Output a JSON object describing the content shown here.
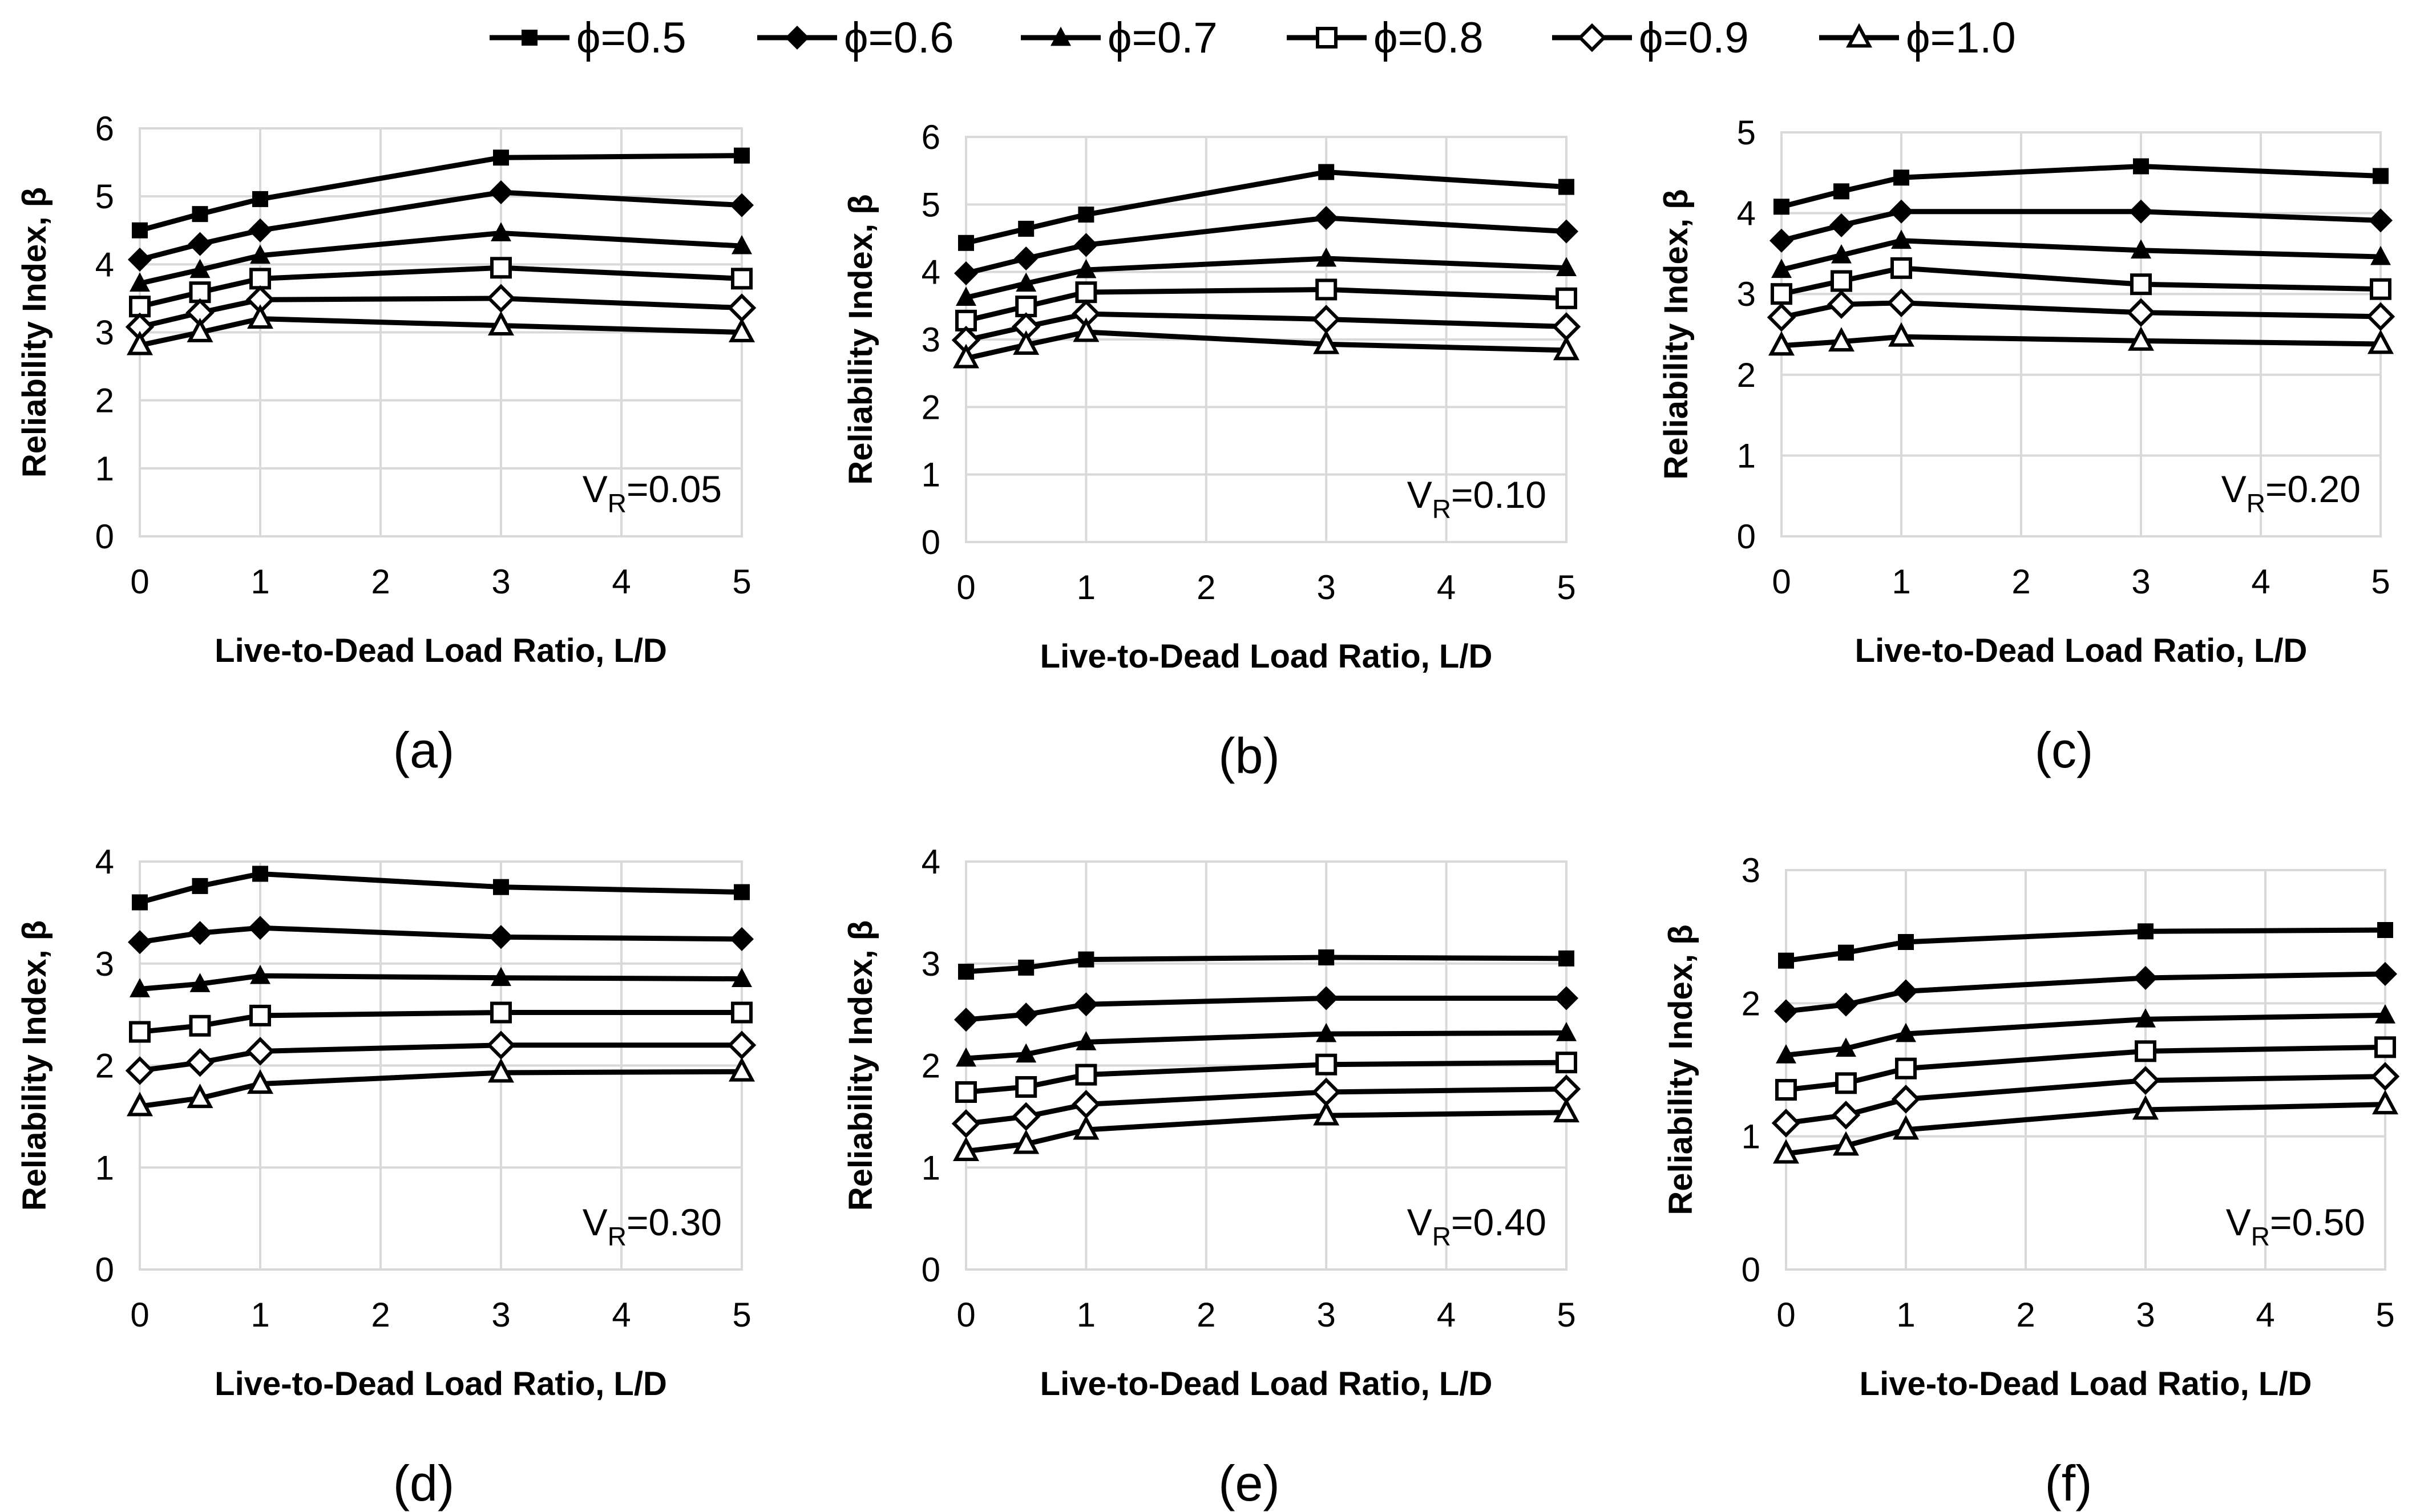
{
  "legend": [
    "ϕ=0.5",
    "ϕ=0.6",
    "ϕ=0.7",
    "ϕ=0.8",
    "ϕ=0.9",
    "ϕ=1.0"
  ],
  "colors": {
    "line": "#000000",
    "grid": "#d9d9d9",
    "background": "#ffffff"
  },
  "chart_data": [
    {
      "type": "line",
      "panel": "(a)",
      "vr_prefix": "V",
      "vr_sub": "R",
      "vr_value": "=0.05",
      "xlabel": "Live-to-Dead Load Ratio, L/D",
      "ylabel": "Reliability Index, β",
      "xlim": [
        0,
        5
      ],
      "ylim": [
        0,
        6
      ],
      "xticks": [
        0,
        1,
        2,
        3,
        4,
        5
      ],
      "yticks": [
        0,
        1,
        2,
        3,
        4,
        5,
        6
      ],
      "x": [
        0,
        0.5,
        1,
        3,
        5
      ],
      "series": [
        {
          "name": "ϕ=0.5",
          "marker": "square-filled",
          "values": [
            4.5,
            4.74,
            4.96,
            5.57,
            5.6
          ]
        },
        {
          "name": "ϕ=0.6",
          "marker": "diamond-filled",
          "values": [
            4.07,
            4.3,
            4.5,
            5.06,
            4.87
          ]
        },
        {
          "name": "ϕ=0.7",
          "marker": "triangle-filled",
          "values": [
            3.72,
            3.92,
            4.13,
            4.46,
            4.27
          ]
        },
        {
          "name": "ϕ=0.8",
          "marker": "square-open",
          "values": [
            3.38,
            3.59,
            3.79,
            3.95,
            3.79
          ]
        },
        {
          "name": "ϕ=0.9",
          "marker": "diamond-open",
          "values": [
            3.08,
            3.29,
            3.48,
            3.5,
            3.36
          ]
        },
        {
          "name": "ϕ=1.0",
          "marker": "triangle-open",
          "values": [
            2.81,
            3.0,
            3.2,
            3.1,
            3.0
          ]
        }
      ]
    },
    {
      "type": "line",
      "panel": "(b)",
      "vr_prefix": "V",
      "vr_sub": "R",
      "vr_value": "=0.10",
      "xlabel": "Live-to-Dead Load Ratio, L/D",
      "ylabel": "Reliability Index, β",
      "xlim": [
        0,
        5
      ],
      "ylim": [
        0,
        6
      ],
      "xticks": [
        0,
        1,
        2,
        3,
        4,
        5
      ],
      "yticks": [
        0,
        1,
        2,
        3,
        4,
        5,
        6
      ],
      "x": [
        0,
        0.5,
        1,
        3,
        5
      ],
      "series": [
        {
          "name": "ϕ=0.5",
          "marker": "square-filled",
          "values": [
            4.43,
            4.64,
            4.85,
            5.48,
            5.26
          ]
        },
        {
          "name": "ϕ=0.6",
          "marker": "diamond-filled",
          "values": [
            3.98,
            4.2,
            4.4,
            4.8,
            4.6
          ]
        },
        {
          "name": "ϕ=0.7",
          "marker": "triangle-filled",
          "values": [
            3.62,
            3.83,
            4.03,
            4.2,
            4.06
          ]
        },
        {
          "name": "ϕ=0.8",
          "marker": "square-open",
          "values": [
            3.28,
            3.49,
            3.7,
            3.74,
            3.61
          ]
        },
        {
          "name": "ϕ=0.9",
          "marker": "diamond-open",
          "values": [
            2.99,
            3.19,
            3.38,
            3.3,
            3.19
          ]
        },
        {
          "name": "ϕ=1.0",
          "marker": "triangle-open",
          "values": [
            2.72,
            2.92,
            3.11,
            2.93,
            2.84
          ]
        }
      ]
    },
    {
      "type": "line",
      "panel": "(c)",
      "vr_prefix": "V",
      "vr_sub": "R",
      "vr_value": "=0.20",
      "xlabel": "Live-to-Dead Load Ratio, L/D",
      "ylabel": "Reliability Index, β",
      "xlim": [
        0,
        5
      ],
      "ylim": [
        0,
        5
      ],
      "xticks": [
        0,
        1,
        2,
        3,
        4,
        5
      ],
      "yticks": [
        0,
        1,
        2,
        3,
        4,
        5
      ],
      "x": [
        0,
        0.5,
        1,
        3,
        5
      ],
      "series": [
        {
          "name": "ϕ=0.5",
          "marker": "square-filled",
          "values": [
            4.08,
            4.27,
            4.44,
            4.58,
            4.46
          ]
        },
        {
          "name": "ϕ=0.6",
          "marker": "diamond-filled",
          "values": [
            3.66,
            3.85,
            4.02,
            4.02,
            3.91
          ]
        },
        {
          "name": "ϕ=0.7",
          "marker": "triangle-filled",
          "values": [
            3.3,
            3.48,
            3.66,
            3.54,
            3.46
          ]
        },
        {
          "name": "ϕ=0.8",
          "marker": "square-open",
          "values": [
            3.0,
            3.16,
            3.32,
            3.12,
            3.06
          ]
        },
        {
          "name": "ϕ=0.9",
          "marker": "diamond-open",
          "values": [
            2.71,
            2.87,
            2.89,
            2.77,
            2.72
          ]
        },
        {
          "name": "ϕ=1.0",
          "marker": "triangle-open",
          "values": [
            2.36,
            2.41,
            2.47,
            2.42,
            2.38
          ]
        }
      ]
    },
    {
      "type": "line",
      "panel": "(d)",
      "vr_prefix": "V",
      "vr_sub": "R",
      "vr_value": "=0.30",
      "xlabel": "Live-to-Dead Load Ratio, L/D",
      "ylabel": "Reliability Index, β",
      "xlim": [
        0,
        5
      ],
      "ylim": [
        0,
        4
      ],
      "xticks": [
        0,
        1,
        2,
        3,
        4,
        5
      ],
      "yticks": [
        0,
        1,
        2,
        3,
        4
      ],
      "x": [
        0,
        0.5,
        1,
        3,
        5
      ],
      "series": [
        {
          "name": "ϕ=0.5",
          "marker": "square-filled",
          "values": [
            3.6,
            3.76,
            3.88,
            3.75,
            3.7
          ]
        },
        {
          "name": "ϕ=0.6",
          "marker": "diamond-filled",
          "values": [
            3.21,
            3.3,
            3.35,
            3.26,
            3.24
          ]
        },
        {
          "name": "ϕ=0.7",
          "marker": "triangle-filled",
          "values": [
            2.75,
            2.8,
            2.88,
            2.86,
            2.85
          ]
        },
        {
          "name": "ϕ=0.8",
          "marker": "square-open",
          "values": [
            2.33,
            2.39,
            2.49,
            2.52,
            2.52
          ]
        },
        {
          "name": "ϕ=0.9",
          "marker": "diamond-open",
          "values": [
            1.95,
            2.03,
            2.14,
            2.2,
            2.2
          ]
        },
        {
          "name": "ϕ=1.0",
          "marker": "triangle-open",
          "values": [
            1.6,
            1.68,
            1.82,
            1.93,
            1.94
          ]
        }
      ]
    },
    {
      "type": "line",
      "panel": "(e)",
      "vr_prefix": "V",
      "vr_sub": "R",
      "vr_value": "=0.40",
      "xlabel": "Live-to-Dead Load Ratio, L/D",
      "ylabel": "Reliability Index, β",
      "xlim": [
        0,
        5
      ],
      "ylim": [
        0,
        4
      ],
      "xticks": [
        0,
        1,
        2,
        3,
        4,
        5
      ],
      "yticks": [
        0,
        1,
        2,
        3,
        4
      ],
      "x": [
        0,
        0.5,
        1,
        3,
        5
      ],
      "series": [
        {
          "name": "ϕ=0.5",
          "marker": "square-filled",
          "values": [
            2.92,
            2.96,
            3.04,
            3.06,
            3.05
          ]
        },
        {
          "name": "ϕ=0.6",
          "marker": "diamond-filled",
          "values": [
            2.45,
            2.5,
            2.6,
            2.66,
            2.66
          ]
        },
        {
          "name": "ϕ=0.7",
          "marker": "triangle-filled",
          "values": [
            2.07,
            2.11,
            2.23,
            2.31,
            2.32
          ]
        },
        {
          "name": "ϕ=0.8",
          "marker": "square-open",
          "values": [
            1.74,
            1.79,
            1.91,
            2.01,
            2.03
          ]
        },
        {
          "name": "ϕ=0.9",
          "marker": "diamond-open",
          "values": [
            1.43,
            1.5,
            1.62,
            1.74,
            1.77
          ]
        },
        {
          "name": "ϕ=1.0",
          "marker": "triangle-open",
          "values": [
            1.16,
            1.23,
            1.37,
            1.51,
            1.54
          ]
        }
      ]
    },
    {
      "type": "line",
      "panel": "(f)",
      "vr_prefix": "V",
      "vr_sub": "R",
      "vr_value": "=0.50",
      "xlabel": "Live-to-Dead Load Ratio, L/D",
      "ylabel": "Reliability Index, β",
      "xlim": [
        0,
        5
      ],
      "ylim": [
        0,
        3
      ],
      "xticks": [
        0,
        1,
        2,
        3,
        4,
        5
      ],
      "yticks": [
        0,
        1,
        2,
        3
      ],
      "x": [
        0,
        0.5,
        1,
        3,
        5
      ],
      "series": [
        {
          "name": "ϕ=0.5",
          "marker": "square-filled",
          "values": [
            2.32,
            2.38,
            2.46,
            2.54,
            2.55
          ]
        },
        {
          "name": "ϕ=0.6",
          "marker": "diamond-filled",
          "values": [
            1.94,
            1.99,
            2.09,
            2.19,
            2.22
          ]
        },
        {
          "name": "ϕ=0.7",
          "marker": "triangle-filled",
          "values": [
            1.61,
            1.66,
            1.77,
            1.88,
            1.91
          ]
        },
        {
          "name": "ϕ=0.8",
          "marker": "square-open",
          "values": [
            1.35,
            1.4,
            1.51,
            1.64,
            1.67
          ]
        },
        {
          "name": "ϕ=0.9",
          "marker": "diamond-open",
          "values": [
            1.1,
            1.16,
            1.28,
            1.42,
            1.45
          ]
        },
        {
          "name": "ϕ=1.0",
          "marker": "triangle-open",
          "values": [
            0.87,
            0.93,
            1.05,
            1.2,
            1.24
          ]
        }
      ]
    }
  ]
}
